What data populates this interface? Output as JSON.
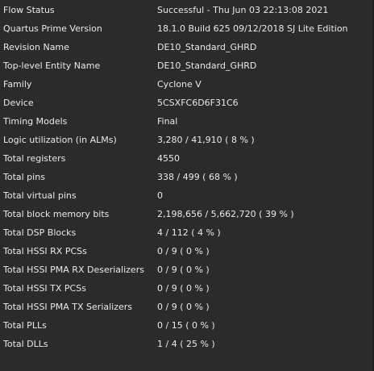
{
  "flow_summary": {
    "rows": [
      {
        "label": "Flow Status",
        "value": "Successful - Thu Jun 03 22:13:08 2021"
      },
      {
        "label": "Quartus Prime Version",
        "value": "18.1.0 Build 625 09/12/2018 SJ Lite Edition"
      },
      {
        "label": "Revision Name",
        "value": "DE10_Standard_GHRD"
      },
      {
        "label": "Top-level Entity Name",
        "value": "DE10_Standard_GHRD"
      },
      {
        "label": "Family",
        "value": "Cyclone V"
      },
      {
        "label": "Device",
        "value": "5CSXFC6D6F31C6"
      },
      {
        "label": "Timing Models",
        "value": "Final"
      },
      {
        "label": "Logic utilization (in ALMs)",
        "value": "3,280 / 41,910 ( 8 % )"
      },
      {
        "label": "Total registers",
        "value": "4550"
      },
      {
        "label": "Total pins",
        "value": "338 / 499 ( 68 % )"
      },
      {
        "label": "Total virtual pins",
        "value": "0"
      },
      {
        "label": "Total block memory bits",
        "value": "2,198,656 / 5,662,720 ( 39 % )"
      },
      {
        "label": "Total DSP Blocks",
        "value": "4 / 112 ( 4 % )"
      },
      {
        "label": "Total HSSI RX PCSs",
        "value": "0 / 9 ( 0 % )"
      },
      {
        "label": "Total HSSI PMA RX Deserializers",
        "value": "0 / 9 ( 0 % )"
      },
      {
        "label": "Total HSSI TX PCSs",
        "value": "0 / 9 ( 0 % )"
      },
      {
        "label": "Total HSSI PMA TX Serializers",
        "value": "0 / 9 ( 0 % )"
      },
      {
        "label": "Total PLLs",
        "value": "0 / 15 ( 0 % )"
      },
      {
        "label": "Total DLLs",
        "value": "1 / 4 ( 25 % )"
      }
    ]
  },
  "colors": {
    "background": "#2b2b2b",
    "text": "#e9e9e9"
  }
}
